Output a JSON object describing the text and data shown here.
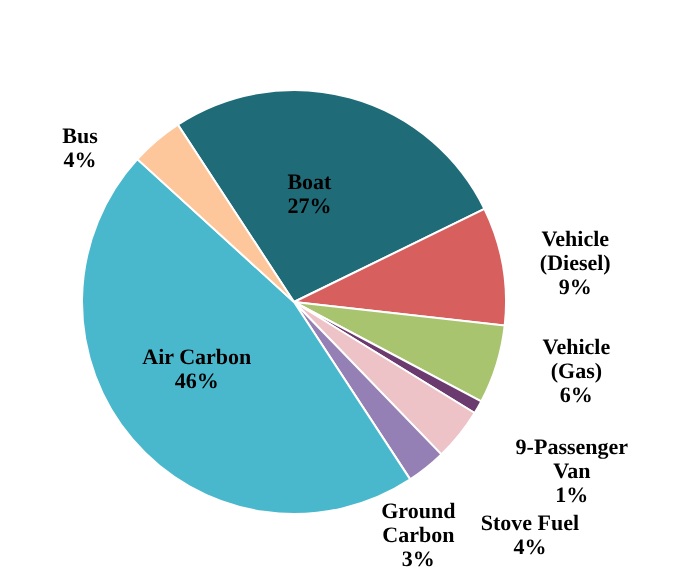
{
  "chart_data": {
    "type": "pie",
    "categories": [
      "Boat",
      "Vehicle (Diesel)",
      "Vehicle (Gas)",
      "9-Passenger Van",
      "Stove Fuel",
      "Ground Carbon",
      "Air Carbon",
      "Bus"
    ],
    "values": [
      27,
      9,
      6,
      1,
      4,
      3,
      46,
      4
    ],
    "value_labels": [
      "27%",
      "9%",
      "6%",
      "1%",
      "4%",
      "3%",
      "46%",
      "4%"
    ],
    "colors": [
      "#1f6b78",
      "#d7605e",
      "#a9c46e",
      "#6b3a6e",
      "#edc3c8",
      "#9480b5",
      "#4ab8cc",
      "#fdc69b"
    ]
  }
}
